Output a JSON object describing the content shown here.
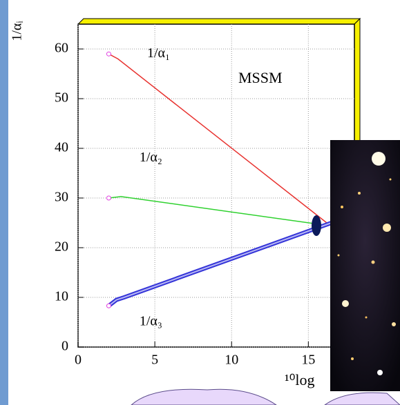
{
  "chart_data": {
    "type": "line",
    "annotation": "MSSM",
    "y_label": "1/αᵢ",
    "x_label": "¹⁰log",
    "xlim": [
      0,
      18
    ],
    "ylim": [
      0,
      65
    ],
    "xticks": [
      0,
      5,
      10,
      15
    ],
    "yticks": [
      0,
      10,
      20,
      30,
      40,
      50,
      60
    ],
    "grid": true,
    "series": [
      {
        "name": "1/α₁",
        "color": "#e8322f",
        "x": [
          2,
          2.6,
          16.2
        ],
        "values": [
          59,
          58,
          25
        ]
      },
      {
        "name": "1/α₂",
        "color": "#2ed12e",
        "x": [
          2,
          2.8,
          16.2
        ],
        "values": [
          30,
          30.3,
          24.5
        ]
      },
      {
        "name": "1/α₃",
        "color": "#3434d8",
        "x": [
          2,
          2.5,
          3,
          16.5
        ],
        "values": [
          8.3,
          9.5,
          10,
          25
        ]
      }
    ]
  }
}
